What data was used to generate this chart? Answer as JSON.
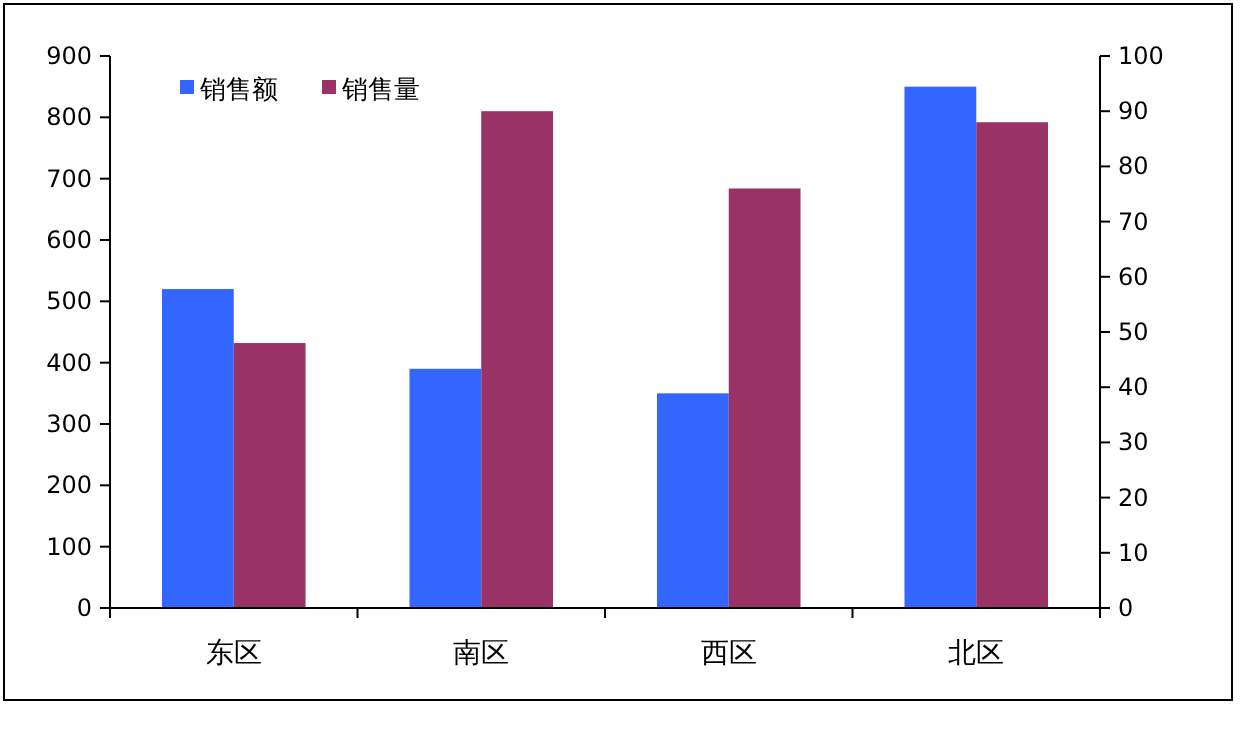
{
  "chart_data": {
    "type": "bar",
    "categories": [
      "东区",
      "南区",
      "西区",
      "北区"
    ],
    "series": [
      {
        "name": "销售额",
        "color": "#3366ff",
        "values": [
          520,
          390,
          350,
          850
        ]
      },
      {
        "name": "销售量",
        "color": "#993366",
        "values": [
          48,
          90,
          76,
          88
        ],
        "axis": "y2"
      }
    ],
    "ylim": [
      0,
      900
    ],
    "yticks": [
      0,
      100,
      200,
      300,
      400,
      500,
      600,
      700,
      800,
      900
    ],
    "y2lim": [
      0,
      100
    ],
    "y2ticks": [
      0,
      10,
      20,
      30,
      40,
      50,
      60,
      70,
      80,
      90,
      100
    ],
    "legend": "top left",
    "grid": false
  }
}
